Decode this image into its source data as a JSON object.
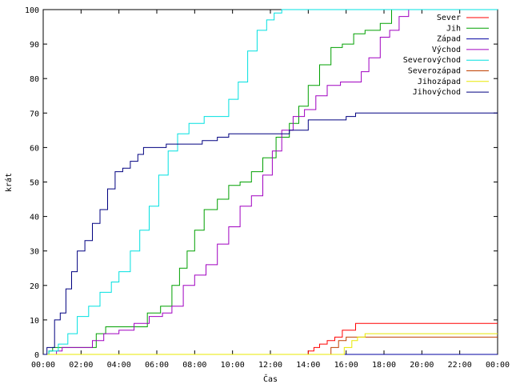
{
  "chart_data": {
    "type": "line",
    "title": "",
    "xlabel": "Čas",
    "ylabel": "krát",
    "xlim": [
      0,
      24
    ],
    "ylim": [
      0,
      100
    ],
    "x_ticks": [
      "00:00",
      "02:00",
      "04:00",
      "06:00",
      "08:00",
      "10:00",
      "12:00",
      "14:00",
      "16:00",
      "18:00",
      "20:00",
      "22:00",
      "00:00"
    ],
    "y_ticks": [
      0,
      10,
      20,
      30,
      40,
      50,
      60,
      70,
      80,
      90,
      100
    ],
    "grid": false,
    "legend_position": "top-right",
    "series": [
      {
        "name": "Sever",
        "color": "#ff0000",
        "x": [
          0,
          13.9,
          14.0,
          14.3,
          14.6,
          15.0,
          15.4,
          15.8,
          16.5,
          24
        ],
        "y": [
          0,
          0,
          1,
          2,
          3,
          4,
          5,
          7,
          9,
          9
        ]
      },
      {
        "name": "Jih",
        "color": "#00a000",
        "x": [
          0,
          0.3,
          0.5,
          1.0,
          2.0,
          2.8,
          3.3,
          4.0,
          5.5,
          6.2,
          6.8,
          7.2,
          7.6,
          8.0,
          8.5,
          9.2,
          9.8,
          10.4,
          11.0,
          11.6,
          12.3,
          13.0,
          13.5,
          14.0,
          14.6,
          15.2,
          15.8,
          16.4,
          17.0,
          17.8,
          18.4,
          18.8,
          19.2,
          24
        ],
        "y": [
          0,
          1,
          2,
          2,
          2,
          6,
          8,
          8,
          12,
          14,
          20,
          25,
          30,
          36,
          42,
          45,
          49,
          50,
          53,
          57,
          63,
          67,
          72,
          78,
          84,
          89,
          90,
          93,
          94,
          96,
          100,
          100,
          100,
          100
        ]
      },
      {
        "name": "Západ",
        "color": "#0000a0",
        "x": [
          0,
          24
        ],
        "y": [
          0,
          0
        ]
      },
      {
        "name": "Východ",
        "color": "#a000c0",
        "x": [
          0,
          0.7,
          1.0,
          1.6,
          2.6,
          3.2,
          3.6,
          4.0,
          4.8,
          5.6,
          6.3,
          6.8,
          7.4,
          8.0,
          8.6,
          9.2,
          9.8,
          10.4,
          11.0,
          11.6,
          12.1,
          12.6,
          13.2,
          13.8,
          14.4,
          15.0,
          15.7,
          16.4,
          16.8,
          17.2,
          17.8,
          18.3,
          18.8,
          19.3,
          24
        ],
        "y": [
          0,
          1,
          2,
          2,
          4,
          6,
          6,
          7,
          9,
          11,
          12,
          14,
          20,
          23,
          26,
          32,
          37,
          43,
          46,
          52,
          59,
          65,
          69,
          71,
          75,
          78,
          79,
          79,
          82,
          86,
          92,
          94,
          98,
          100,
          100
        ]
      },
      {
        "name": "Severovýchod",
        "color": "#00e0e0",
        "x": [
          0,
          0.3,
          0.8,
          1.3,
          1.8,
          2.4,
          3.0,
          3.6,
          4.0,
          4.6,
          5.1,
          5.6,
          6.1,
          6.6,
          7.1,
          7.7,
          8.5,
          9.3,
          9.8,
          10.3,
          10.8,
          11.3,
          11.8,
          12.2,
          12.6,
          13.0,
          24
        ],
        "y": [
          0,
          1,
          3,
          6,
          11,
          14,
          18,
          21,
          24,
          30,
          36,
          43,
          52,
          59,
          64,
          67,
          69,
          69,
          74,
          79,
          88,
          94,
          97,
          99,
          100,
          100,
          100
        ]
      },
      {
        "name": "Severozápad",
        "color": "#c04000",
        "x": [
          0,
          14.8,
          15.2,
          15.6,
          16.0,
          16.5,
          24
        ],
        "y": [
          0,
          0,
          2,
          4,
          5,
          5,
          5
        ]
      },
      {
        "name": "Jihozápad",
        "color": "#e8e800",
        "x": [
          0,
          15.5,
          15.9,
          16.3,
          16.6,
          17.0,
          24
        ],
        "y": [
          0,
          0,
          2,
          4,
          5,
          6,
          6
        ]
      },
      {
        "name": "Jihovýchod",
        "color": "#000080",
        "x": [
          0,
          0.2,
          0.6,
          0.9,
          1.2,
          1.5,
          1.8,
          2.2,
          2.6,
          3.0,
          3.4,
          3.8,
          4.2,
          4.6,
          5.0,
          5.3,
          5.6,
          6.5,
          7.5,
          8.4,
          9.2,
          9.8,
          10.5,
          11.3,
          12.0,
          13.0,
          14.0,
          15.0,
          16.0,
          16.5,
          17.0,
          24
        ],
        "y": [
          0,
          2,
          10,
          12,
          19,
          24,
          30,
          33,
          38,
          42,
          48,
          53,
          54,
          56,
          58,
          60,
          60,
          61,
          61,
          62,
          63,
          64,
          64,
          64,
          64,
          65,
          68,
          68,
          69,
          70,
          70,
          70
        ]
      }
    ]
  }
}
